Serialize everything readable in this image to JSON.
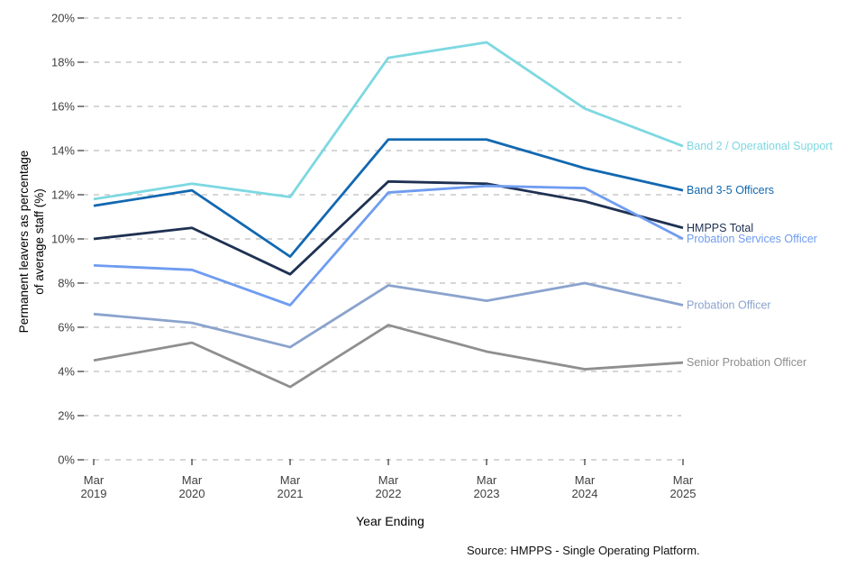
{
  "chart_data": {
    "type": "line",
    "title": "",
    "xlabel": "Year Ending",
    "ylabel_line1": "Permanent leavers as percentage",
    "ylabel_line2": "of average staff (%)",
    "categories": [
      "Mar 2019",
      "Mar 2020",
      "Mar 2021",
      "Mar 2022",
      "Mar 2023",
      "Mar 2024",
      "Mar 2025"
    ],
    "series": [
      {
        "name": "Band 2 / Operational Support",
        "color": "#7DD8E1",
        "values": [
          11.8,
          12.5,
          11.9,
          18.2,
          18.9,
          15.9,
          14.2
        ]
      },
      {
        "name": "Band 3-5 Officers",
        "color": "#1268B1",
        "values": [
          11.5,
          12.2,
          9.2,
          14.5,
          14.5,
          13.2,
          12.2
        ]
      },
      {
        "name": "HMPPS Total",
        "color": "#1F3152",
        "values": [
          10.0,
          10.5,
          8.4,
          12.6,
          12.5,
          11.7,
          10.5
        ]
      },
      {
        "name": "Probation Services Officer",
        "color": "#6F9CF0",
        "values": [
          8.8,
          8.6,
          7.0,
          12.1,
          12.4,
          12.3,
          10.0
        ]
      },
      {
        "name": "Probation Officer",
        "color": "#8BA3CD",
        "values": [
          6.6,
          6.2,
          5.1,
          7.9,
          7.2,
          8.0,
          7.0
        ]
      },
      {
        "name": "Senior Probation Officer",
        "color": "#8F8F8F",
        "values": [
          4.5,
          5.3,
          3.3,
          6.1,
          4.9,
          4.1,
          4.4
        ]
      }
    ],
    "ylim": [
      0,
      20
    ],
    "y_tick_step": 2,
    "y_tick_suffix": "%",
    "grid": "horizontal-dashed",
    "legend_position": "labels-at-line-ends-right",
    "colors": {
      "gridline": "#c8c8c8",
      "tick_mark": "#333333",
      "axis_text": "#404040",
      "title_text": "#000000",
      "background": "#ffffff"
    }
  },
  "source_note": "Source: HMPPS - Single Operating Platform."
}
